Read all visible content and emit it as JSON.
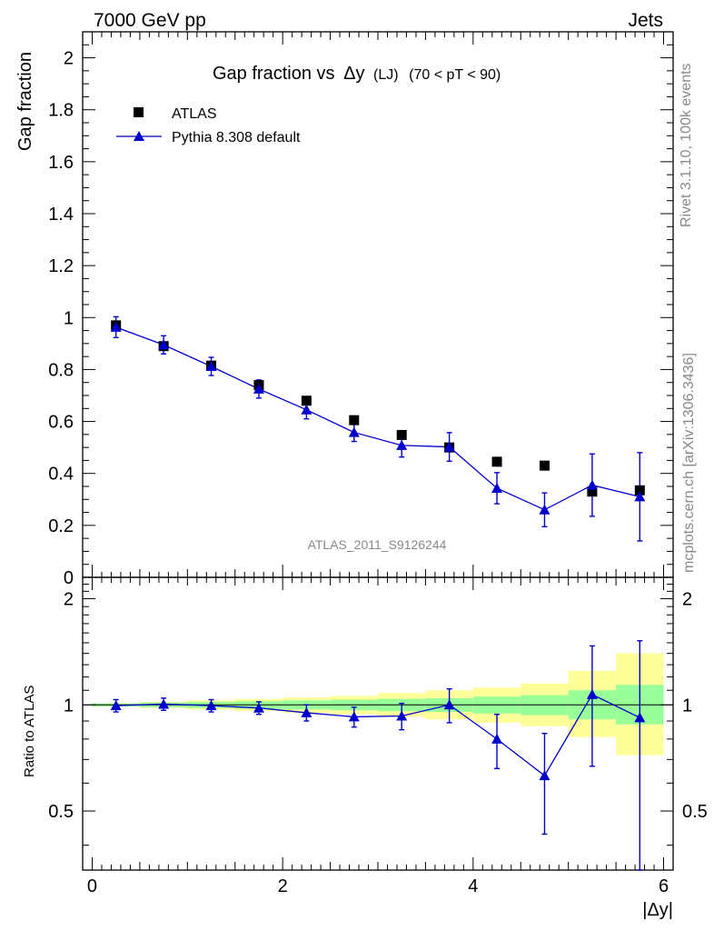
{
  "header": {
    "left": "7000 GeV pp",
    "right": "Jets"
  },
  "side_labels": {
    "rivet": "Rivet 3.1.10,  100k events",
    "mcplots": "mcplots.cern.ch [arXiv:1306.3436]"
  },
  "chart_data": [
    {
      "type": "scatter",
      "panel": "main",
      "title": "Gap fraction vsΔy (LJ) (70 < pT <  90)",
      "title_main": "Gap fraction vs",
      "title_delta": "Δy",
      "title_tail": "(LJ)",
      "title_range": "(70 < pT <  90)",
      "watermark": "ATLAS_2011_S9126244",
      "ylabel": "Gap fraction",
      "xlim": [
        -0.1,
        6.1
      ],
      "ylim": [
        0,
        2.1
      ],
      "yticks": [
        0,
        0.2,
        0.4,
        0.6,
        0.8,
        1,
        1.2,
        1.4,
        1.6,
        1.8,
        2
      ],
      "ytick_labels": [
        "0",
        "0.2",
        "0.4",
        "0.6",
        "0.8",
        "1",
        "1.2",
        "1.4",
        "1.6",
        "1.8",
        "2"
      ],
      "legend_position": "top-left",
      "series": [
        {
          "name": "ATLAS",
          "marker": "square",
          "color": "#000000",
          "x": [
            0.25,
            0.75,
            1.25,
            1.75,
            2.25,
            2.75,
            3.25,
            3.75,
            4.25,
            4.75,
            5.25,
            5.75
          ],
          "y": [
            0.97,
            0.89,
            0.815,
            0.74,
            0.68,
            0.605,
            0.548,
            0.5,
            0.445,
            0.43,
            0.33,
            0.335
          ]
        },
        {
          "name": "Pythia 8.308 default",
          "marker": "triangle",
          "color": "#0000cc",
          "x": [
            0.25,
            0.75,
            1.25,
            1.75,
            2.25,
            2.75,
            3.25,
            3.75,
            4.25,
            4.75,
            5.25,
            5.75
          ],
          "y": [
            0.963,
            0.895,
            0.812,
            0.725,
            0.645,
            0.558,
            0.508,
            0.502,
            0.343,
            0.26,
            0.355,
            0.31
          ],
          "yerr": [
            0.04,
            0.035,
            0.035,
            0.035,
            0.035,
            0.035,
            0.045,
            0.055,
            0.06,
            0.065,
            0.12,
            0.17
          ]
        }
      ]
    },
    {
      "type": "scatter",
      "panel": "ratio",
      "ylabel": "Ratio to ATLAS",
      "xlabel": "|Δy|",
      "xlim": [
        -0.1,
        6.1
      ],
      "ylim": [
        0.34,
        2.3
      ],
      "xticks": [
        0,
        2,
        4,
        6
      ],
      "xtick_labels": [
        "0",
        "2",
        "4",
        "6"
      ],
      "yticks": [
        0.5,
        1,
        2
      ],
      "ytick_labels": [
        "0.5",
        "1",
        "2"
      ],
      "bands": {
        "x_edges": [
          0,
          0.5,
          1.0,
          1.5,
          2.0,
          2.5,
          3.0,
          3.5,
          4.0,
          4.5,
          5.0,
          5.5,
          6.0
        ],
        "green_lo": [
          0.99,
          0.985,
          0.98,
          0.975,
          0.97,
          0.965,
          0.96,
          0.955,
          0.945,
          0.935,
          0.91,
          0.88
        ],
        "green_hi": [
          1.01,
          1.015,
          1.02,
          1.025,
          1.03,
          1.035,
          1.04,
          1.045,
          1.055,
          1.065,
          1.1,
          1.14
        ],
        "yellow_lo": [
          0.99,
          0.98,
          0.97,
          0.96,
          0.95,
          0.94,
          0.925,
          0.91,
          0.89,
          0.87,
          0.81,
          0.72
        ],
        "yellow_hi": [
          1.01,
          1.02,
          1.03,
          1.04,
          1.05,
          1.06,
          1.08,
          1.1,
          1.12,
          1.15,
          1.25,
          1.4
        ],
        "green_color": "#99ff99",
        "yellow_color": "#ffff99"
      },
      "series": [
        {
          "name": "Pythia 8.308 default",
          "marker": "triangle",
          "color": "#0000cc",
          "x": [
            0.25,
            0.75,
            1.25,
            1.75,
            2.25,
            2.75,
            3.25,
            3.75,
            4.25,
            4.75,
            5.25,
            5.75
          ],
          "y": [
            0.995,
            1.005,
            0.995,
            0.98,
            0.95,
            0.925,
            0.93,
            1.0,
            0.8,
            0.63,
            1.07,
            0.92
          ],
          "yerr": [
            0.04,
            0.04,
            0.04,
            0.04,
            0.05,
            0.06,
            0.08,
            0.11,
            0.14,
            0.2,
            0.4,
            0.6
          ]
        }
      ]
    }
  ]
}
